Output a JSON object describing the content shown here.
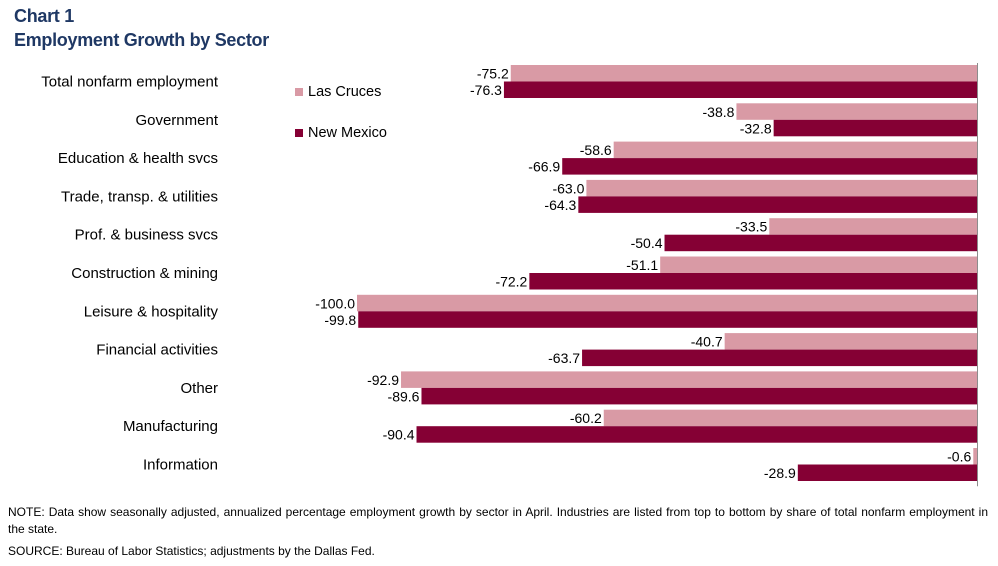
{
  "header": {
    "chart_number": "Chart 1",
    "title": "Employment Growth by Sector"
  },
  "footer": {
    "note": "NOTE: Data show seasonally adjusted, annualized percentage employment growth by sector in April. Industries are listed from top to bottom by share of total nonfarm employment in the state.",
    "source": "SOURCE: Bureau of Labor Statistics; adjustments by the Dallas Fed."
  },
  "chart_data": {
    "type": "bar",
    "orientation": "horizontal",
    "categories": [
      "Total nonfarm employment",
      "Government",
      "Education & health svcs",
      "Trade, transp. & utilities",
      "Prof. & business svcs",
      "Construction & mining",
      "Leisure & hospitality",
      "Financial activities",
      "Other",
      "Manufacturing",
      "Information"
    ],
    "series": [
      {
        "name": "Las Cruces",
        "color": "#d99aa5",
        "values": [
          -75.2,
          -38.8,
          -58.6,
          -63.0,
          -33.5,
          -51.1,
          -100.0,
          -40.7,
          -92.9,
          -60.2,
          -0.6
        ],
        "labels": [
          "-75.2",
          "-38.8",
          "-58.6",
          "-63.0",
          "-33.5",
          "-51.1",
          "-100.0",
          "-40.7",
          "-92.9",
          "-60.2",
          "-0.6"
        ]
      },
      {
        "name": "New Mexico",
        "color": "#850034",
        "values": [
          -76.3,
          -32.8,
          -66.9,
          -64.3,
          -50.4,
          -72.2,
          -99.8,
          -63.7,
          -89.6,
          -90.4,
          -28.9
        ],
        "labels": [
          "-76.3",
          "-32.8",
          "-66.9",
          "-64.3",
          "-50.4",
          "-72.2",
          "-99.8",
          "-63.7",
          "-89.6",
          "-90.4",
          "-28.9"
        ]
      }
    ],
    "xlim": [
      -100,
      0
    ],
    "legend_position": "top-left",
    "grid": false,
    "data_labels": true
  }
}
